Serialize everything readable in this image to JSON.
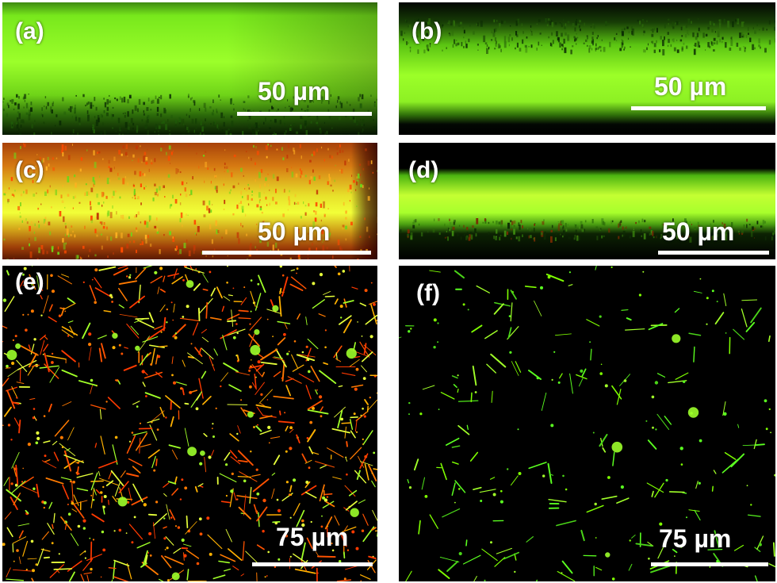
{
  "panels": {
    "a": {
      "label": "(a)",
      "scale": "50 µm"
    },
    "b": {
      "label": "(b)",
      "scale": "50 µm"
    },
    "c": {
      "label": "(c)",
      "scale": "50 µm"
    },
    "d": {
      "label": "(d)",
      "scale": "50 µm"
    },
    "e": {
      "label": "(e)",
      "scale": "75 µm"
    },
    "f": {
      "label": "(f)",
      "scale": "75 µm"
    }
  },
  "colors": {
    "background": "#000000",
    "green": "#7fff00",
    "yellow": "#e6ff3a",
    "red": "#ff3a00",
    "orange": "#ff8c00"
  }
}
